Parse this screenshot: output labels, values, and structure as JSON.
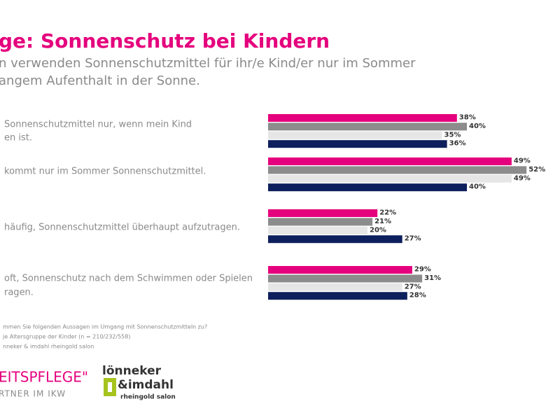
{
  "chart_data": {
    "type": "hbar",
    "title": "ge: Sonnenschutz bei Kindern",
    "subtitle": [
      "n verwenden Sonnenschutzmittel für ihr/e Kind/er nur im Sommer",
      "angem Aufenthalt in der Sonne."
    ],
    "categories": [
      [
        "Sonnenschutzmittel nur, wenn mein Kind",
        "en ist."
      ],
      [
        "kommt nur im Sommer Sonnenschutzmittel."
      ],
      [
        "häufig, Sonnenschutzmittel überhaupt aufzutragen."
      ],
      [
        "oft, Sonnenschutz nach dem Schwimmen oder Spielen",
        "ragen."
      ]
    ],
    "series": [
      {
        "color": "#e5007d",
        "values": [
          38,
          49,
          22,
          29
        ],
        "value_labels": [
          "38%",
          "49%",
          "22%",
          "29%"
        ]
      },
      {
        "color": "#8c8c8c",
        "values": [
          40,
          52,
          21,
          31
        ],
        "value_labels": [
          "40%",
          "52%",
          "21%",
          "31%"
        ]
      },
      {
        "color": "#e6e6e6",
        "values": [
          35,
          49,
          20,
          27
        ],
        "value_labels": [
          "35%",
          "49%",
          "20%",
          "27%"
        ]
      },
      {
        "color": "#0d1f5c",
        "values": [
          36,
          40,
          27,
          28
        ],
        "value_labels": [
          "36%",
          "40%",
          "27%",
          "28%"
        ]
      }
    ]
  },
  "footnotes": [
    "mmen Sie folgenden Aussagen im Umgang mit Sonnenschutzmitteln zu?",
    "je Altersgruppe der Kinder (n = 210/232/558)",
    "nneker & imdahl rheingold salon"
  ],
  "footer": {
    "brand": "EITSPFLEGE\"",
    "tagline": "RTNER IM IKW",
    "logo": [
      "lönneker",
      "&imdahl",
      "rheingold salon"
    ]
  }
}
